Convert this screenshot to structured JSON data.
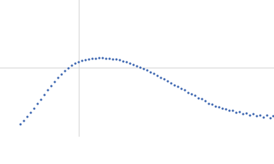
{
  "chart_data": {
    "type": "scatter",
    "color": "#3e67b1",
    "grid": true,
    "xlim": [
      0,
      400
    ],
    "ylim": [
      0,
      200
    ],
    "xticks": [
      115
    ],
    "yticks": [
      101
    ],
    "x": [
      30,
      35,
      40,
      45,
      50,
      55,
      60,
      65,
      70,
      75,
      80,
      85,
      90,
      95,
      100,
      105,
      110,
      115,
      120,
      125,
      130,
      135,
      140,
      145,
      150,
      155,
      160,
      165,
      170,
      175,
      180,
      185,
      190,
      195,
      200,
      205,
      210,
      215,
      220,
      225,
      230,
      235,
      240,
      245,
      250,
      255,
      260,
      265,
      270,
      275,
      280,
      285,
      290,
      295,
      300,
      305,
      310,
      315,
      320,
      325,
      330,
      335,
      340,
      345,
      350,
      355,
      360,
      365,
      370,
      375,
      380,
      385,
      390,
      395,
      399
    ],
    "y": [
      18,
      23,
      29,
      35,
      41,
      48,
      54,
      61,
      68,
      74,
      80,
      86,
      91,
      96,
      100,
      104,
      107,
      109,
      111,
      112,
      113,
      114,
      114,
      115,
      115,
      114,
      114,
      113,
      113,
      112,
      110,
      109,
      107,
      105,
      103,
      101,
      99,
      97,
      94,
      92,
      89,
      86,
      84,
      81,
      78,
      75,
      73,
      70,
      68,
      64,
      62,
      60,
      56,
      55,
      52,
      48,
      47,
      44,
      43,
      41,
      40,
      38,
      38,
      35,
      36,
      33,
      34,
      31,
      33,
      30,
      31,
      28,
      31,
      27,
      30
    ]
  }
}
